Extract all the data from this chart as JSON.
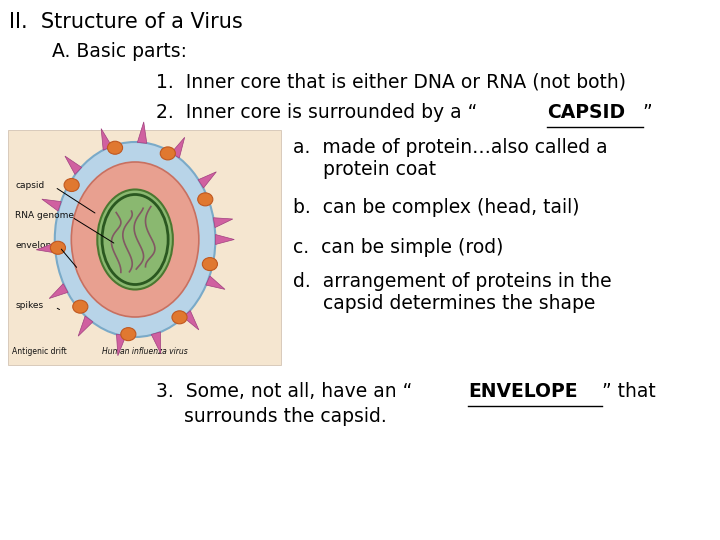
{
  "title": "II.  Structure of a Virus",
  "subtitle": "A. Basic parts:",
  "line1": "1.  Inner core that is either DNA or RNA (not both)",
  "line2_prefix": "2.  Inner core is surrounded by a “",
  "line2_bold_underline": "CAPSID",
  "line2_suffix": "”",
  "item_a1": "a.  made of protein…also called a",
  "item_a2": "     protein coat",
  "item_b": "b.  can be complex (head, tail)",
  "item_c": "c.  can be simple (rod)",
  "item_d1": "d.  arrangement of proteins in the",
  "item_d2": "     capsid determines the shape",
  "line3_prefix": "3.  Some, not all, have an “",
  "line3_bold_underline": "ENVELOPE",
  "line3_suffix": "” that",
  "line3_cont": "     surrounds the capsid.",
  "bg_color": "#ffffff",
  "text_color": "#000000",
  "image_bg": "#f5e6d0",
  "font_size_title": 15,
  "font_size_body": 13.5
}
